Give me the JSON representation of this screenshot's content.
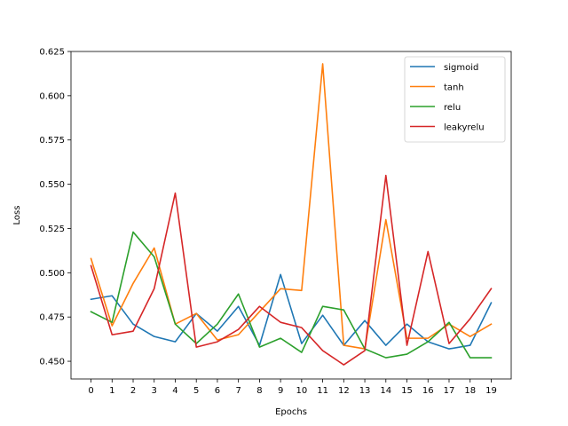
{
  "chart_data": {
    "type": "line",
    "title": "",
    "xlabel": "Epochs",
    "ylabel": "Loss",
    "x": [
      0,
      1,
      2,
      3,
      4,
      5,
      6,
      7,
      8,
      9,
      10,
      11,
      12,
      13,
      14,
      15,
      16,
      17,
      18,
      19
    ],
    "xticks": [
      0,
      1,
      2,
      3,
      4,
      5,
      6,
      7,
      8,
      9,
      10,
      11,
      12,
      13,
      14,
      15,
      16,
      17,
      18,
      19
    ],
    "xlim": [
      -0.95,
      19.95
    ],
    "ylim": [
      0.44,
      0.625
    ],
    "yticks": [
      0.45,
      0.475,
      0.5,
      0.525,
      0.55,
      0.575,
      0.6,
      0.625
    ],
    "ytick_labels": [
      "0.450",
      "0.475",
      "0.500",
      "0.525",
      "0.550",
      "0.575",
      "0.600",
      "0.625"
    ],
    "grid": false,
    "legend_position": "top-right",
    "series": [
      {
        "name": "sigmoid",
        "color": "#1f77b4",
        "values": [
          0.485,
          0.487,
          0.471,
          0.464,
          0.461,
          0.477,
          0.467,
          0.481,
          0.459,
          0.499,
          0.46,
          0.476,
          0.459,
          0.473,
          0.459,
          0.471,
          0.461,
          0.457,
          0.459,
          0.483
        ]
      },
      {
        "name": "tanh",
        "color": "#ff7f0e",
        "values": [
          0.508,
          0.47,
          0.494,
          0.514,
          0.471,
          0.477,
          0.462,
          0.465,
          0.478,
          0.491,
          0.49,
          0.618,
          0.459,
          0.457,
          0.53,
          0.463,
          0.463,
          0.471,
          0.464,
          0.471
        ]
      },
      {
        "name": "relu",
        "color": "#2ca02c",
        "values": [
          0.478,
          0.472,
          0.523,
          0.509,
          0.471,
          0.46,
          0.471,
          0.488,
          0.458,
          0.463,
          0.455,
          0.481,
          0.479,
          0.457,
          0.452,
          0.454,
          0.461,
          0.472,
          0.452,
          0.452
        ]
      },
      {
        "name": "leakyrelu",
        "color": "#d62728",
        "values": [
          0.504,
          0.465,
          0.467,
          0.491,
          0.545,
          0.458,
          0.461,
          0.468,
          0.481,
          0.472,
          0.469,
          0.456,
          0.448,
          0.456,
          0.555,
          0.459,
          0.512,
          0.46,
          0.474,
          0.491
        ]
      }
    ]
  }
}
